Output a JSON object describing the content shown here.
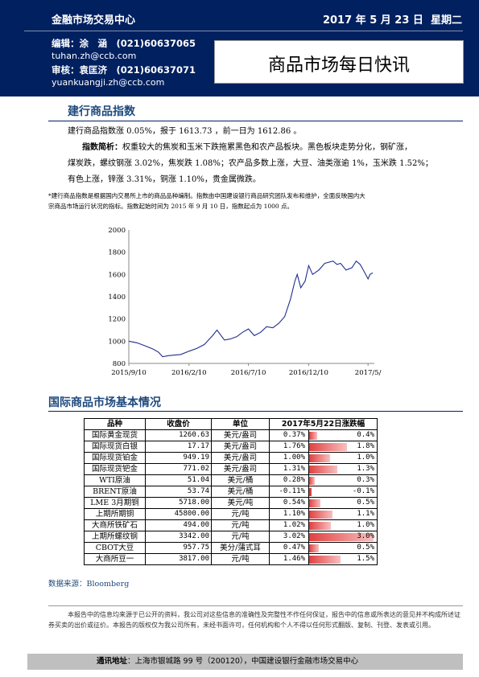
{
  "header": {
    "org": "金融市场交易中心",
    "date": "2017 年 5 月 23 日",
    "weekday": "星期二",
    "editor_line": "编辑：涂　涵　(021)60637065",
    "editor_email": "tuhan.zh@ccb.com",
    "reviewer_line": "审核：袁匡济　(021)60637071",
    "reviewer_email": "yuankuangji.zh@ccb.com",
    "report_title": "商品市场每日快讯"
  },
  "index_section": {
    "title": "建行商品指数",
    "summary": "建行商品指数涨 0.05%，报于 1613.73 ，前一日为 1612.86 。",
    "brief_label": "指数简析：",
    "brief_lines": [
      "权重较大的焦炭和玉米下跌拖累黑色和农产品板块。黑色板块走势分化，钢矿涨，",
      "煤炭跌，螺纹钢涨 3.02%，焦炭跌 1.08%；农产品多数上涨，大豆、油类涨逾 1%，玉米跌 1.52%；",
      "有色上涨，锌涨 3.31%，铜涨 1.10%，贵金属微跌。"
    ],
    "note_lines": [
      "*建行商品指数是根据国内交易所上市的商品品种编制。指数由中国建设银行商品研究团队发布和维护，全面反映国内大",
      "宗商品市场运行状况的指标。指数起始时间为 2015 年 9 月 10 日，指数起点为 1000 点。"
    ]
  },
  "chart_data": {
    "type": "line",
    "title": "",
    "xlabel": "",
    "ylabel": "",
    "ylim": [
      800,
      2000
    ],
    "yticks": [
      800,
      1000,
      1200,
      1400,
      1600,
      1800,
      2000
    ],
    "xticks": [
      "2015/9/10",
      "2016/2/10",
      "2016/7/10",
      "2016/12/10",
      "2017/5/"
    ],
    "grid": false,
    "series": [
      {
        "x": [
          "2015/9/10",
          "2015/10/1",
          "2015/10/20",
          "2015/11/10",
          "2015/11/25",
          "2015/12/5",
          "2015/12/20",
          "2016/1/5",
          "2016/1/20",
          "2016/2/10",
          "2016/3/1",
          "2016/3/20",
          "2016/4/10",
          "2016/4/21",
          "2016/5/10",
          "2016/5/25",
          "2016/6/10",
          "2016/6/25",
          "2016/7/10",
          "2016/7/25",
          "2016/8/10",
          "2016/8/25",
          "2016/9/10",
          "2016/9/25",
          "2016/10/10",
          "2016/10/25",
          "2016/11/5",
          "2016/11/11",
          "2016/11/20",
          "2016/12/1",
          "2016/12/10",
          "2016/12/20",
          "2017/1/5",
          "2017/1/20",
          "2017/2/10",
          "2017/2/20",
          "2017/3/1",
          "2017/3/15",
          "2017/3/30",
          "2017/4/10",
          "2017/4/20",
          "2017/5/1",
          "2017/5/10",
          "2017/5/15",
          "2017/5/22"
        ],
        "values": [
          1000,
          985,
          960,
          930,
          900,
          860,
          870,
          875,
          880,
          910,
          935,
          970,
          1050,
          1100,
          1010,
          1020,
          1040,
          1080,
          1110,
          1050,
          1080,
          1130,
          1120,
          1160,
          1220,
          1380,
          1540,
          1600,
          1480,
          1540,
          1680,
          1600,
          1640,
          1700,
          1720,
          1690,
          1700,
          1640,
          1660,
          1720,
          1690,
          1620,
          1560,
          1600,
          1613.73
        ]
      }
    ]
  },
  "market_section": {
    "title": "国际商品市场基本情况",
    "columns": [
      "品种",
      "收盘价",
      "单位",
      "2017年5月22日涨跌幅"
    ],
    "rows": [
      {
        "name": "国际黄金现货",
        "price": "1260.63",
        "unit": "美元/盎司",
        "pct": "0.37%",
        "bar_label": "0.4%",
        "value": 0.37
      },
      {
        "name": "国际现货白银",
        "price": "17.17",
        "unit": "美元/盎司",
        "pct": "1.76%",
        "bar_label": "1.8%",
        "value": 1.76
      },
      {
        "name": "国际现货铂金",
        "price": "949.19",
        "unit": "美元/盎司",
        "pct": "1.00%",
        "bar_label": "1.0%",
        "value": 1.0
      },
      {
        "name": "国际现货钯金",
        "price": "771.02",
        "unit": "美元/盎司",
        "pct": "1.31%",
        "bar_label": "1.3%",
        "value": 1.31
      },
      {
        "name": "WTI原油",
        "price": "51.04",
        "unit": "美元/桶",
        "pct": "0.28%",
        "bar_label": "0.3%",
        "value": 0.28
      },
      {
        "name": "BRENT原油",
        "price": "53.74",
        "unit": "美元/桶",
        "pct": "-0.11%",
        "bar_label": "-0.1%",
        "value": -0.11
      },
      {
        "name": "LME 3月期铜",
        "price": "5718.00",
        "unit": "美元/吨",
        "pct": "0.54%",
        "bar_label": "0.5%",
        "value": 0.54
      },
      {
        "name": "上期所期铜",
        "price": "45800.00",
        "unit": "元/吨",
        "pct": "1.10%",
        "bar_label": "1.1%",
        "value": 1.1
      },
      {
        "name": "大商所铁矿石",
        "price": "494.00",
        "unit": "元/吨",
        "pct": "1.02%",
        "bar_label": "1.0%",
        "value": 1.02
      },
      {
        "name": "上期所螺纹钢",
        "price": "3342.00",
        "unit": "元/吨",
        "pct": "3.02%",
        "bar_label": "3.0%",
        "value": 3.02
      },
      {
        "name": "CBOT大豆",
        "price": "957.75",
        "unit": "美分/蒲式耳",
        "pct": "0.47%",
        "bar_label": "0.5%",
        "value": 0.47
      },
      {
        "name": "大商所豆一",
        "price": "3817.00",
        "unit": "元/吨",
        "pct": "1.46%",
        "bar_label": "1.5%",
        "value": 1.46
      }
    ],
    "source": "数据来源：Bloomberg"
  },
  "disclaimer": "本报告中的信息均来源于已公开的资料，我公司对这些信息的准确性及完整性不作任何保证，报告中的信息或所表达的意见并不构成所述证券买卖的出价或征价。本报告的版权仅为我公司所有，未经书面许可，任何机构和个人不得以任何形式翻版、复制、刊登、发表或引用。",
  "footer": {
    "label": "通讯地址",
    "address": "：上海市银城路 99 号（200120），中国建设银行金融市场交易中心"
  },
  "colors": {
    "header_bg": "#002060",
    "section_title": "#1f497d",
    "bar_fill": "#e04040",
    "line": "#1f2f8f"
  }
}
